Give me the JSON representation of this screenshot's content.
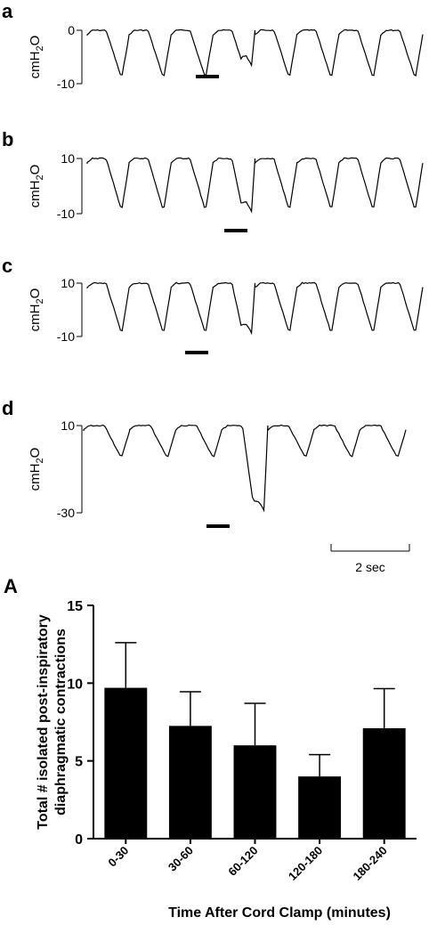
{
  "chart_data": [
    {
      "type": "line",
      "panel": "a",
      "ylabel": "cmH",
      "ylabel_sub": "2",
      "ylabel_tail": "O",
      "y_ticks": [
        "0",
        "-10"
      ],
      "ylim": [
        -10,
        0
      ],
      "trough": -9,
      "cycles": 8,
      "event_cycle": 3,
      "event_depth": -6.2
    },
    {
      "type": "line",
      "panel": "b",
      "ylabel": "cmH",
      "ylabel_sub": "2",
      "ylabel_tail": "O",
      "y_ticks": [
        "10",
        "-10"
      ],
      "ylim": [
        -10,
        10
      ],
      "trough": -9,
      "cycles": 8,
      "event_cycle": 3,
      "event_depth": -8.5
    },
    {
      "type": "line",
      "panel": "c",
      "ylabel": "cmH",
      "ylabel_sub": "2",
      "ylabel_tail": "O",
      "y_ticks": [
        "10",
        "-10"
      ],
      "ylim": [
        -10,
        10
      ],
      "trough": -9,
      "cycles": 8,
      "event_cycle": 3,
      "event_depth": -8
    },
    {
      "type": "line",
      "panel": "d",
      "ylabel": "cmH",
      "ylabel_sub": "2",
      "ylabel_tail": "O",
      "y_ticks": [
        "10",
        "-30"
      ],
      "ylim": [
        -30,
        10
      ],
      "trough": -5,
      "cycles": 7,
      "event_cycle": 3,
      "event_depth": -28
    },
    {
      "type": "bar",
      "panel": "A",
      "ylabel_line1": "Total # isolated post-inspiratory",
      "ylabel_line2": "diaphragmatic contractions",
      "xlabel": "Time After Cord Clamp (minutes)",
      "categories": [
        "0-30",
        "30-60",
        "60-120",
        "120-180",
        "180-240"
      ],
      "values": [
        9.7,
        7.25,
        6.0,
        4.0,
        7.1
      ],
      "errors": [
        2.9,
        2.2,
        2.7,
        1.4,
        2.55
      ],
      "ylim": [
        0,
        15
      ],
      "y_ticks": [
        "0",
        "5",
        "10",
        "15"
      ],
      "bar_color": "#000000"
    }
  ],
  "scale_bar": {
    "label": "2 sec"
  }
}
